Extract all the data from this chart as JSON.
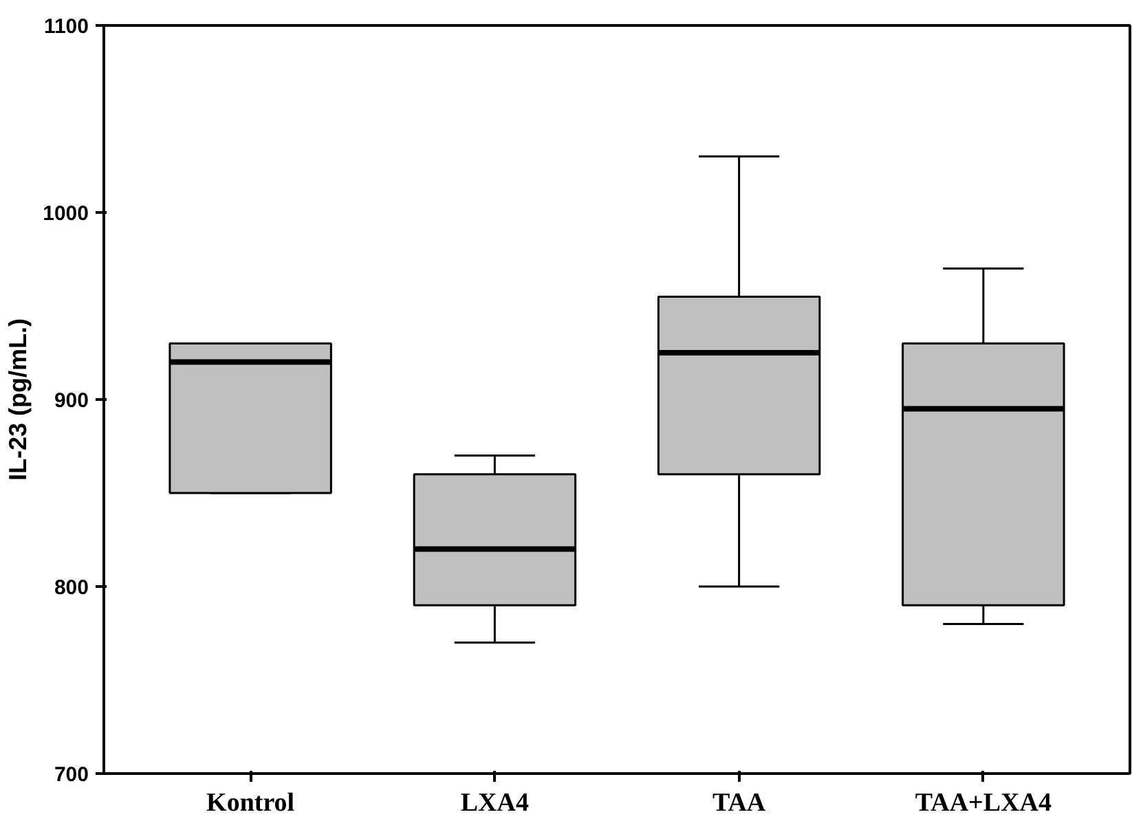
{
  "chart_data": {
    "type": "box",
    "ylabel": "IL-23 (pg/mL.)",
    "categories": [
      "Kontrol",
      "LXA4",
      "TAA",
      "TAA+LXA4"
    ],
    "series": [
      {
        "color": "#c0c0c0",
        "boxes": [
          {
            "low": 850,
            "q1": 850,
            "median": 920,
            "q3": 930,
            "high": 930
          },
          {
            "low": 770,
            "q1": 790,
            "median": 820,
            "q3": 860,
            "high": 870
          },
          {
            "low": 800,
            "q1": 860,
            "median": 925,
            "q3": 955,
            "high": 1030
          },
          {
            "low": 780,
            "q1": 790,
            "median": 895,
            "q3": 930,
            "high": 970
          }
        ]
      }
    ],
    "ylim": [
      700,
      1100
    ],
    "yticks": [
      700,
      800,
      900,
      1000,
      1100
    ],
    "grid": false
  }
}
